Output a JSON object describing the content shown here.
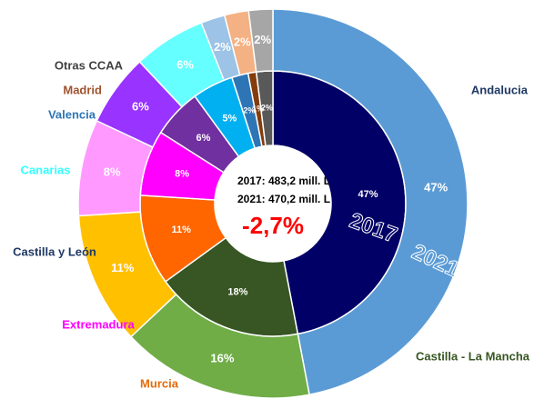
{
  "chart_data": {
    "type": "pie",
    "categories": [
      "Andalucia",
      "Castilla - La Mancha",
      "Murcia",
      "Extremadura",
      "Castilla y León",
      "Canarias",
      "Valencia",
      "Madrid",
      "Otras CCAA"
    ],
    "category_colors": [
      "#1f3864",
      "#375623",
      "#e46c0a",
      "#ff00ff",
      "#1f3864",
      "#33ffff",
      "#2e75b6",
      "#a0522d",
      "#404040"
    ],
    "series": [
      {
        "name": "2017",
        "values": [
          47,
          18,
          11,
          8,
          6,
          5,
          2,
          1,
          2
        ],
        "value_labels": [
          "47%",
          "18%",
          "11%",
          "8%",
          "6%",
          "5%",
          "2%",
          "1%",
          "2%"
        ],
        "colors": [
          "#000066",
          "#375623",
          "#ff6600",
          "#ff00ff",
          "#7030a0",
          "#00b0f0",
          "#2e75b6",
          "#843c0c",
          "#595959"
        ]
      },
      {
        "name": "2021",
        "values": [
          47,
          16,
          11,
          8,
          6,
          6,
          2,
          2,
          2
        ],
        "value_labels": [
          "47%",
          "16%",
          "11%",
          "8%",
          "6%",
          "6%",
          "2%",
          "2%",
          "2%"
        ],
        "colors": [
          "#5b9bd5",
          "#70ad47",
          "#ffc000",
          "#ff99ff",
          "#9933ff",
          "#66ffff",
          "#9dc3e6",
          "#f4b183",
          "#a6a6a6"
        ]
      }
    ],
    "annotations": [
      "2017: 483,2 mill. L",
      "2021: 470,2 mill. L",
      "-2,7%"
    ]
  }
}
